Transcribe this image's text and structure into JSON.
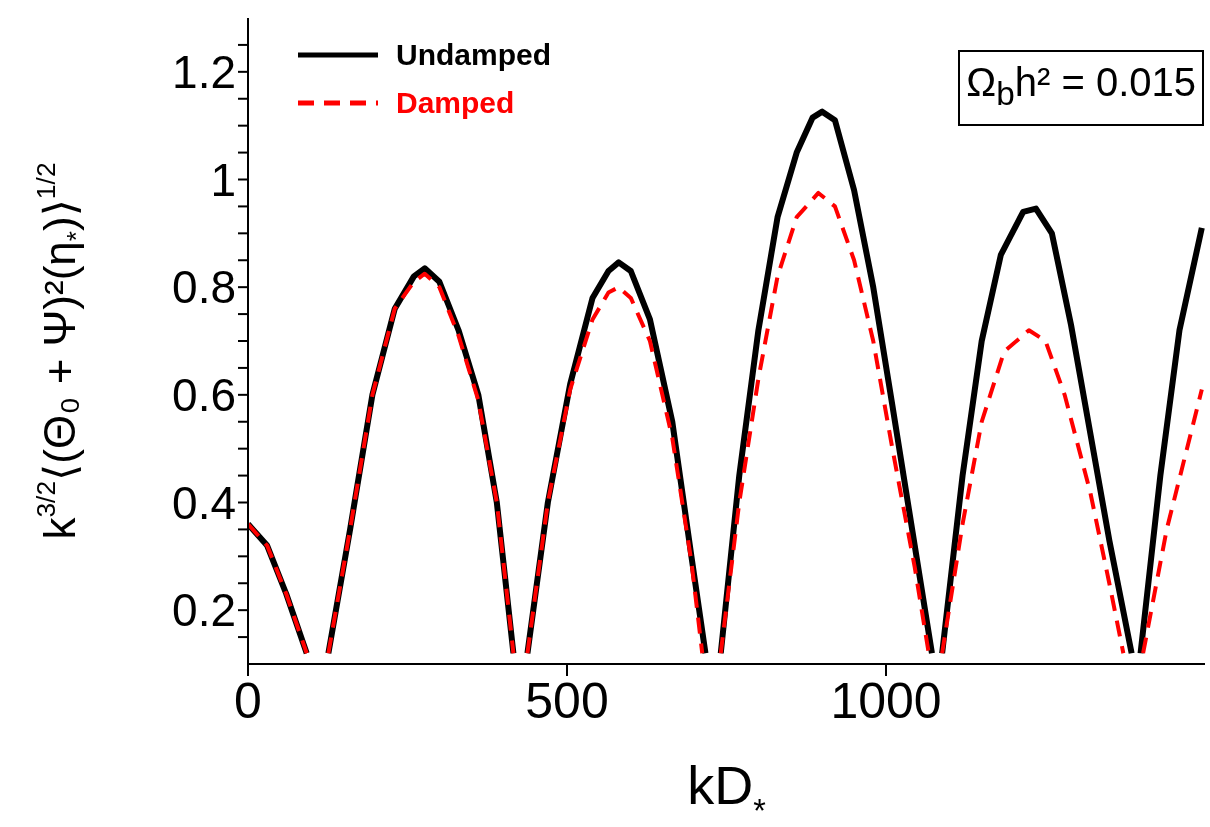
{
  "chart_data": {
    "type": "line",
    "xlabel": "kD$_{*}$",
    "ylabel": "k$^{3/2}$⟨(Θ₀ + Ψ)²(η$_{*}$)⟩$^{1/2}$",
    "annotations": [
      "Ω$_{b}$h² = 0.015"
    ],
    "xlim": [
      0,
      1500
    ],
    "xticks": [
      0,
      500,
      1000
    ],
    "ylim": [
      0.1,
      1.3
    ],
    "yticks": [
      {
        "value": 0.15,
        "label": null
      },
      0.2,
      {
        "value": 0.25,
        "label": null
      },
      {
        "value": 0.3,
        "label": null
      },
      {
        "value": 0.35,
        "label": null
      },
      0.4,
      {
        "value": 0.45,
        "label": null
      },
      {
        "value": 0.5,
        "label": null
      },
      {
        "value": 0.55,
        "label": null
      },
      0.6,
      {
        "value": 0.65,
        "label": null
      },
      {
        "value": 0.7,
        "label": null
      },
      {
        "value": 0.75,
        "label": null
      },
      0.8,
      {
        "value": 0.85,
        "label": null
      },
      {
        "value": 0.9,
        "label": null
      },
      {
        "value": 0.95,
        "label": null
      },
      1,
      {
        "value": 1.05,
        "label": null
      },
      {
        "value": 1.1,
        "label": null
      },
      {
        "value": 1.15,
        "label": null
      },
      1.2,
      {
        "value": 1.25,
        "label": null
      }
    ],
    "legend": "top left",
    "marker": "none",
    "series": [
      {
        "name": "Undamped",
        "color": "#000000",
        "line_style": "solid",
        "x": [
          0,
          30,
          60,
          92,
          109,
          126,
          160,
          195,
          230,
          260,
          277,
          300,
          330,
          361,
          390,
          416,
          427,
          438,
          470,
          505,
          540,
          565,
          581,
          600,
          630,
          665,
          695,
          717,
          729,
          741,
          770,
          800,
          830,
          860,
          885,
          900,
          920,
          950,
          980,
          1010,
          1045,
          1072,
          1080,
          1088,
          1120,
          1150,
          1180,
          1215,
          1235,
          1260,
          1290,
          1320,
          1350,
          1385,
          1392,
          1399,
          1430,
          1460,
          1495
        ],
        "values": [
          0.36,
          0.32,
          0.23,
          0.12,
          null,
          0.12,
          0.35,
          0.6,
          0.76,
          0.82,
          0.835,
          0.81,
          0.72,
          0.6,
          0.4,
          0.12,
          null,
          0.12,
          0.4,
          0.62,
          0.78,
          0.83,
          0.846,
          0.83,
          0.74,
          0.55,
          0.3,
          0.12,
          null,
          0.12,
          0.45,
          0.72,
          0.93,
          1.05,
          1.115,
          1.126,
          1.11,
          0.98,
          0.8,
          0.58,
          0.32,
          0.12,
          null,
          0.12,
          0.45,
          0.7,
          0.86,
          0.94,
          0.946,
          0.9,
          0.73,
          0.53,
          0.33,
          0.12,
          null,
          0.12,
          0.45,
          0.72,
          0.91
        ]
      },
      {
        "name": "Damped",
        "color": "#ff0000",
        "line_style": "dashed",
        "x": [
          0,
          30,
          60,
          92,
          109,
          126,
          160,
          195,
          230,
          260,
          277,
          300,
          330,
          361,
          390,
          416,
          427,
          438,
          470,
          505,
          540,
          565,
          581,
          600,
          630,
          665,
          695,
          712,
          726,
          741,
          770,
          800,
          830,
          860,
          894,
          920,
          950,
          980,
          1010,
          1045,
          1067,
          1078,
          1088,
          1120,
          1150,
          1185,
          1224,
          1250,
          1280,
          1320,
          1350,
          1372,
          1390,
          1403,
          1440,
          1495
        ],
        "values": [
          0.36,
          0.32,
          0.23,
          0.12,
          null,
          0.12,
          0.35,
          0.6,
          0.76,
          0.81,
          0.825,
          0.8,
          0.71,
          0.59,
          0.4,
          0.12,
          null,
          0.12,
          0.4,
          0.61,
          0.74,
          0.79,
          0.8,
          0.78,
          0.7,
          0.52,
          0.29,
          0.12,
          null,
          0.12,
          0.4,
          0.63,
          0.82,
          0.93,
          0.975,
          0.95,
          0.85,
          0.7,
          0.5,
          0.28,
          0.12,
          null,
          0.12,
          0.36,
          0.55,
          0.68,
          0.72,
          0.7,
          0.6,
          0.42,
          0.25,
          0.12,
          null,
          0.12,
          0.35,
          0.61
        ]
      }
    ]
  }
}
